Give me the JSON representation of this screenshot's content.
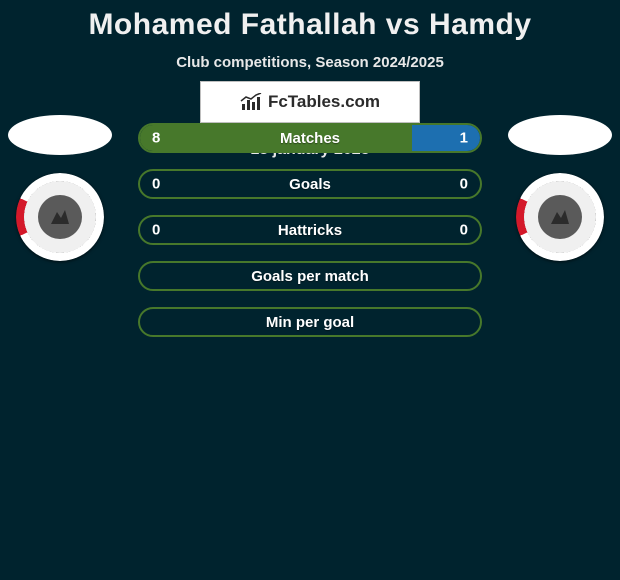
{
  "title": "Mohamed Fathallah vs Hamdy",
  "subtitle": "Club competitions, Season 2024/2025",
  "date": "18 january 2025",
  "branding": "FcTables.com",
  "colors": {
    "background": "#00232e",
    "left_accent": "#47782b",
    "right_accent": "#1d6fb0",
    "text": "#ffffff"
  },
  "stats": [
    {
      "label": "Matches",
      "left_value": "8",
      "right_value": "1",
      "left_pct": 80,
      "right_pct": 20,
      "left_color": "#47782b",
      "right_color": "#1d6fb0",
      "border_color": "#47782b",
      "fill": true
    },
    {
      "label": "Goals",
      "left_value": "0",
      "right_value": "0",
      "left_pct": 0,
      "right_pct": 0,
      "left_color": "#47782b",
      "right_color": "#1d6fb0",
      "border_color": "#47782b",
      "fill": false
    },
    {
      "label": "Hattricks",
      "left_value": "0",
      "right_value": "0",
      "left_pct": 0,
      "right_pct": 0,
      "left_color": "#47782b",
      "right_color": "#1d6fb0",
      "border_color": "#47782b",
      "fill": false
    },
    {
      "label": "Goals per match",
      "left_value": "",
      "right_value": "",
      "left_pct": 0,
      "right_pct": 0,
      "left_color": "#47782b",
      "right_color": "#1d6fb0",
      "border_color": "#47782b",
      "fill": false
    },
    {
      "label": "Min per goal",
      "left_value": "",
      "right_value": "",
      "left_pct": 0,
      "right_pct": 0,
      "left_color": "#47782b",
      "right_color": "#1d6fb0",
      "border_color": "#47782b",
      "fill": false
    }
  ]
}
